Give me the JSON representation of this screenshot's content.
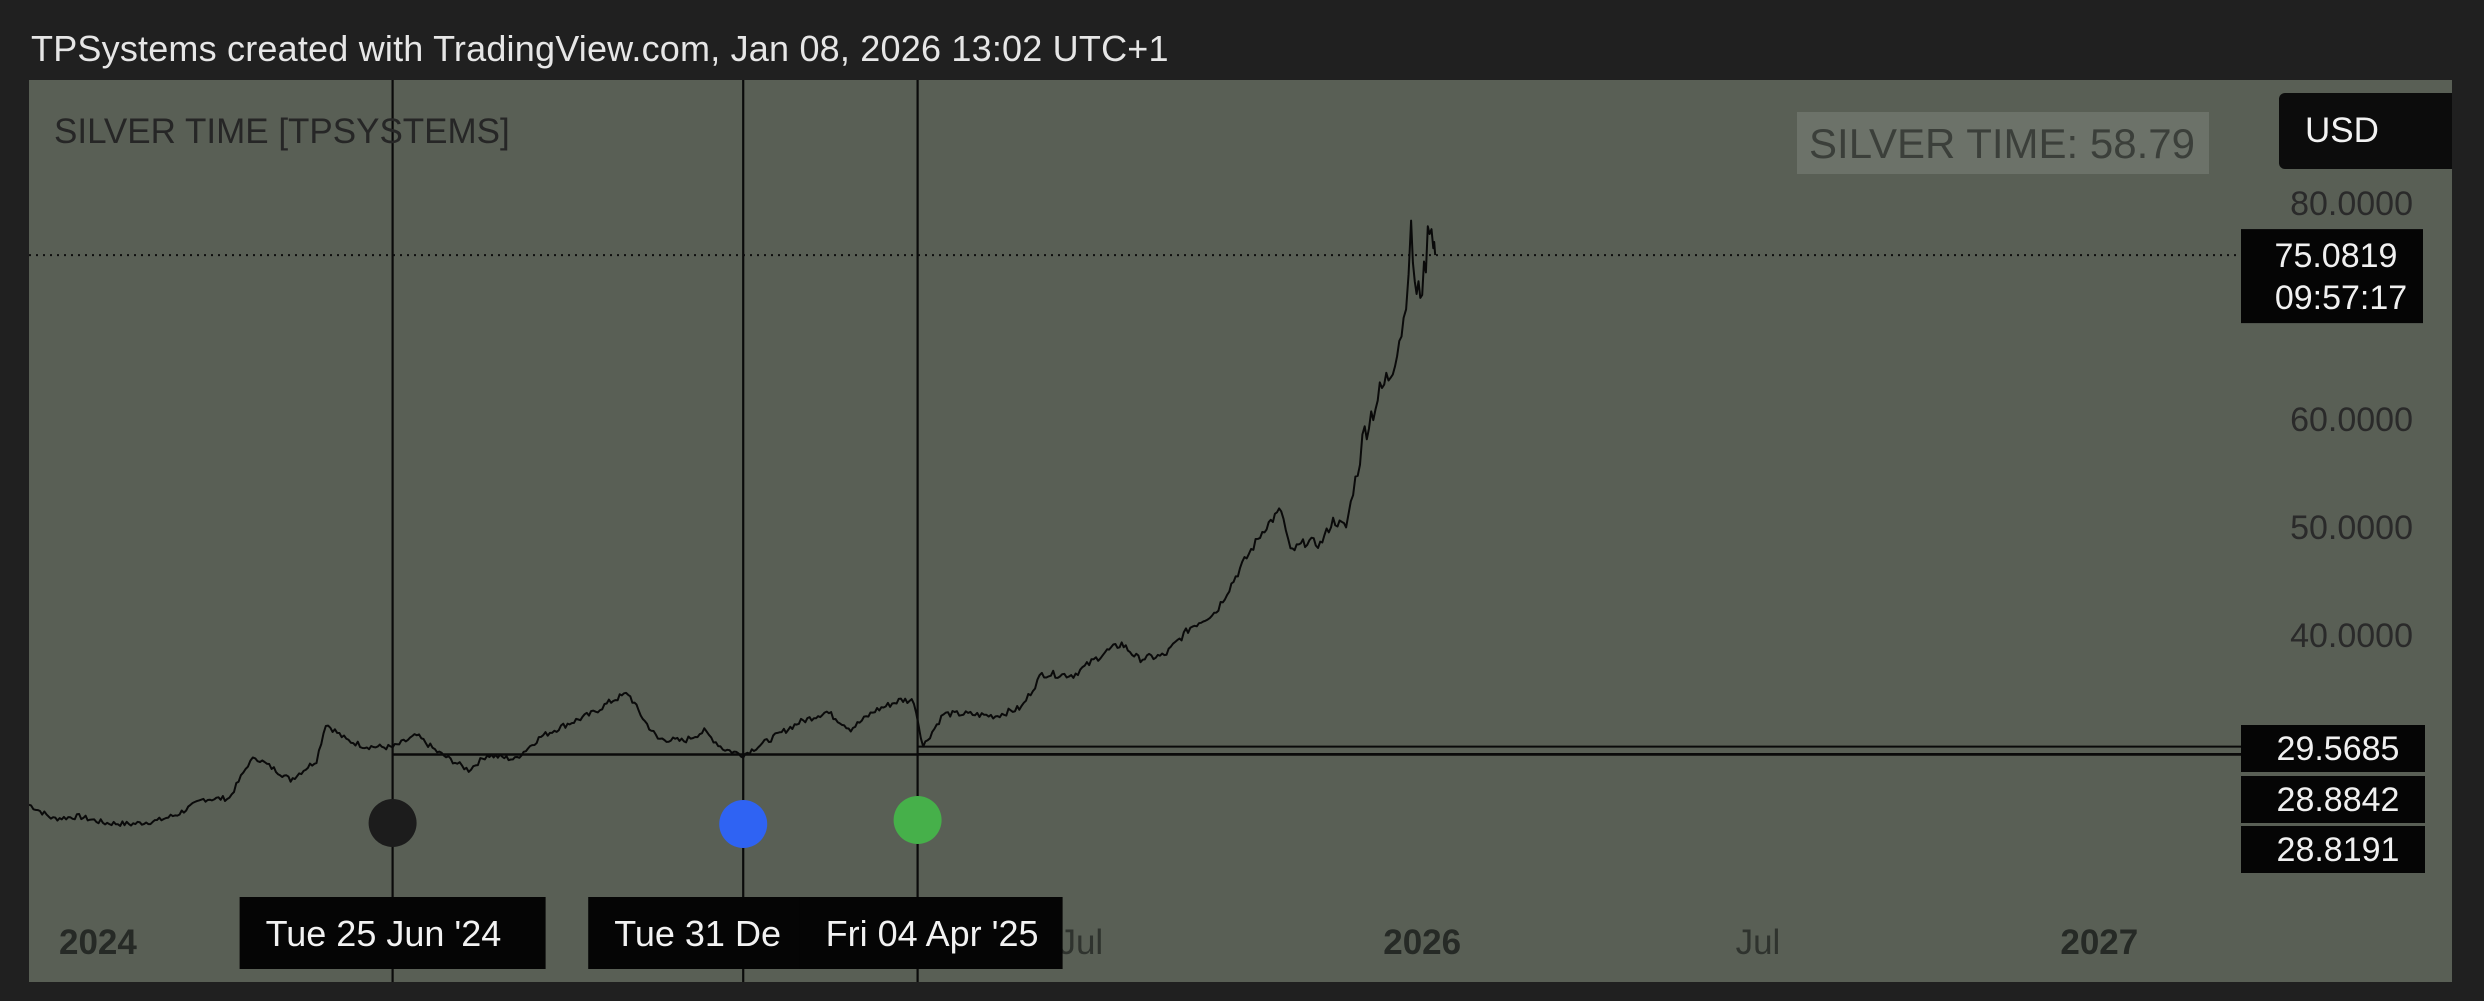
{
  "header": {
    "caption": "TPSystems created with TradingView.com, Jan 08, 2026 13:02 UTC+1"
  },
  "indicator": {
    "title": "SILVER TIME [TPSYSTEMS]",
    "value_label": "SILVER TIME: 58.79"
  },
  "currency_button": {
    "label": "USD"
  },
  "colors": {
    "pane_background": "#595f55",
    "price_line": "#0a0a0a",
    "marker_black": "#1c1c1c",
    "marker_blue": "#2f63f3",
    "marker_green": "#46b04a"
  },
  "chart_data": {
    "type": "line",
    "symbol_label": "SILVER TIME [TPSYSTEMS]",
    "x_ticks": [
      "2024",
      "Jul",
      "2026",
      "Jul",
      "2027"
    ],
    "x_ticks_bold": [
      true,
      false,
      true,
      false,
      true
    ],
    "x_tick_dates": [
      "2024-01-01",
      "2025-07-01",
      "2026-01-01",
      "2026-07-01",
      "2027-01-01"
    ],
    "y_ticks": [
      40,
      50,
      60,
      80
    ],
    "y_tick_labels": [
      "40.0000",
      "50.0000",
      "60.0000",
      "80.0000"
    ],
    "ylim": [
      20,
      90
    ],
    "xlim": [
      "2023-12-12",
      "2027-03-20"
    ],
    "series": [
      {
        "x": [
          "2023-12-12",
          "2023-12-25",
          "2024-01-08",
          "2024-01-22",
          "2024-02-05",
          "2024-02-19",
          "2024-03-01",
          "2024-03-15",
          "2024-03-29",
          "2024-04-08",
          "2024-04-12",
          "2024-04-22",
          "2024-05-01",
          "2024-05-15",
          "2024-05-20",
          "2024-05-31",
          "2024-06-10",
          "2024-06-25",
          "2024-07-08",
          "2024-07-19",
          "2024-08-05",
          "2024-08-15",
          "2024-08-30",
          "2024-09-13",
          "2024-09-25",
          "2024-10-10",
          "2024-10-22",
          "2024-10-30",
          "2024-11-08",
          "2024-11-15",
          "2024-11-29",
          "2024-12-10",
          "2024-12-20",
          "2024-12-31",
          "2025-01-15",
          "2025-01-30",
          "2025-02-14",
          "2025-02-27",
          "2025-03-12",
          "2025-03-26",
          "2025-04-02",
          "2025-04-07",
          "2025-04-18",
          "2025-04-30",
          "2025-05-16",
          "2025-05-30",
          "2025-06-10",
          "2025-06-27",
          "2025-07-14",
          "2025-07-23",
          "2025-08-01",
          "2025-08-15",
          "2025-08-29",
          "2025-09-12",
          "2025-09-26",
          "2025-10-08",
          "2025-10-17",
          "2025-10-22",
          "2025-10-31",
          "2025-11-07",
          "2025-11-14",
          "2025-11-21",
          "2025-12-01",
          "2025-12-08",
          "2025-12-15",
          "2025-12-22",
          "2025-12-26",
          "2025-12-29",
          "2025-12-31",
          "2026-01-02",
          "2026-01-05",
          "2026-01-07",
          "2026-01-08"
        ],
        "values": [
          24.2,
          22.9,
          23.1,
          22.5,
          22.4,
          22.7,
          23.3,
          24.7,
          24.8,
          27.9,
          28.6,
          27.5,
          26.5,
          28.3,
          31.7,
          30.2,
          29.6,
          29.5,
          30.6,
          29.1,
          27.4,
          28.8,
          28.4,
          30.5,
          31.5,
          32.6,
          33.9,
          34.5,
          31.9,
          30.3,
          30.1,
          31.0,
          29.4,
          28.8,
          30.3,
          31.8,
          32.8,
          31.2,
          32.9,
          33.9,
          33.8,
          29.6,
          32.6,
          32.6,
          32.4,
          33.2,
          36.3,
          36.2,
          38.3,
          39.1,
          37.7,
          38.0,
          40.6,
          42.1,
          46.4,
          49.8,
          51.5,
          47.6,
          48.6,
          48.3,
          50.5,
          49.9,
          58.8,
          61.8,
          64.3,
          69.0,
          76.8,
          71.0,
          72.0,
          73.0,
          78.5,
          77.0,
          75.08
        ]
      }
    ],
    "events": [
      {
        "date": "2024-06-25",
        "label": "Tue 25 Jun '24",
        "marker": "black"
      },
      {
        "date": "2024-12-31",
        "label": "Tue 31 De",
        "marker": "blue"
      },
      {
        "date": "2025-04-04",
        "label": "Fri 04 Apr '25",
        "marker": "green"
      }
    ],
    "current_price": {
      "value": 75.0819,
      "label": "75.0819",
      "countdown": "09:57:17"
    },
    "horizontal_levels": [
      {
        "value": 29.5685,
        "label": "29.5685"
      },
      {
        "value": 28.8842,
        "label": "28.8842"
      },
      {
        "value": 28.8191,
        "label": "28.8191"
      }
    ]
  }
}
